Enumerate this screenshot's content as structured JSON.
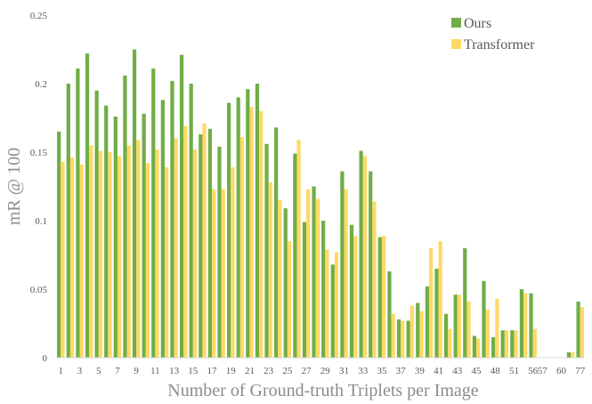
{
  "colors": {
    "ours": "#70ad47",
    "transformer": "#ffd966",
    "axis": "#d9d9d9"
  },
  "chart_data": {
    "type": "bar",
    "xlabel": "Number of Ground-truth Triplets per Image",
    "ylabel": "mR @ 100",
    "ylim": [
      0,
      0.25
    ],
    "yticks": [
      0,
      0.05,
      0.1,
      0.15,
      0.2,
      0.25
    ],
    "ytick_labels": [
      "0",
      "0.05",
      "0.1",
      "0.15",
      "0.2",
      "0.25"
    ],
    "legend_position": "top-right",
    "grid": false,
    "categories": [
      "1",
      "2",
      "3",
      "4",
      "5",
      "6",
      "7",
      "8",
      "9",
      "10",
      "11",
      "12",
      "13",
      "14",
      "15",
      "16",
      "17",
      "18",
      "19",
      "20",
      "21",
      "22",
      "23",
      "24",
      "25",
      "26",
      "27",
      "28",
      "29",
      "30",
      "31",
      "32",
      "33",
      "34",
      "35",
      "36",
      "37",
      "38",
      "39",
      "40",
      "41",
      "42",
      "43",
      "44",
      "45",
      "46",
      "48",
      "49",
      "51",
      "52",
      "56",
      "57",
      "58",
      "60",
      "62",
      "77"
    ],
    "xtick_labels": [
      "1",
      "",
      "3",
      "",
      "5",
      "",
      "7",
      "",
      "9",
      "",
      "11",
      "",
      "13",
      "",
      "15",
      "",
      "17",
      "",
      "19",
      "",
      "21",
      "",
      "23",
      "",
      "25",
      "",
      "27",
      "",
      "29",
      "",
      "31",
      "",
      "33",
      "",
      "35",
      "",
      "37",
      "",
      "39",
      "",
      "41",
      "",
      "43",
      "",
      "45",
      "",
      "48",
      "",
      "51",
      "",
      "56",
      "57",
      "",
      "60",
      "",
      "77"
    ],
    "series": [
      {
        "name": "Ours",
        "values": [
          0.165,
          0.2,
          0.211,
          0.222,
          0.195,
          0.184,
          0.176,
          0.206,
          0.225,
          0.178,
          0.211,
          0.188,
          0.202,
          0.221,
          0.2,
          0.163,
          0.167,
          0.154,
          0.186,
          0.19,
          0.196,
          0.2,
          0.156,
          0.168,
          0.109,
          0.149,
          0.099,
          0.125,
          0.1,
          0.068,
          0.136,
          0.097,
          0.151,
          0.136,
          0.088,
          0.063,
          0.028,
          0.027,
          0.04,
          0.052,
          0.065,
          0.032,
          0.046,
          0.08,
          0.016,
          0.056,
          0.015,
          0.02,
          0.02,
          0.05,
          0.047,
          0.0,
          0.0,
          0.0,
          0.004,
          0.041
        ]
      },
      {
        "name": "Transformer",
        "values": [
          0.143,
          0.146,
          0.141,
          0.155,
          0.151,
          0.15,
          0.147,
          0.155,
          0.159,
          0.142,
          0.152,
          0.139,
          0.16,
          0.169,
          0.152,
          0.171,
          0.123,
          0.123,
          0.139,
          0.161,
          0.183,
          0.18,
          0.128,
          0.115,
          0.085,
          0.159,
          0.123,
          0.116,
          0.079,
          0.077,
          0.123,
          0.089,
          0.147,
          0.114,
          0.089,
          0.032,
          0.027,
          0.038,
          0.034,
          0.08,
          0.085,
          0.021,
          0.046,
          0.041,
          0.014,
          0.035,
          0.043,
          0.02,
          0.02,
          0.047,
          0.021,
          0.0,
          0.0,
          0.0,
          0.004,
          0.037
        ]
      }
    ]
  }
}
